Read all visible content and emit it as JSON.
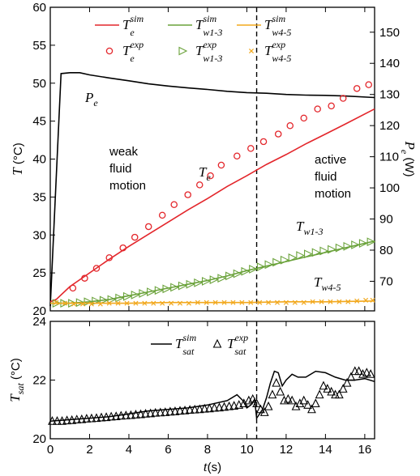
{
  "chart_data": [
    {
      "type": "line",
      "panel": "top",
      "xlim": [
        0,
        16.5
      ],
      "ylim": [
        20,
        60
      ],
      "y2lim": [
        60.5,
        158
      ],
      "xticks": [
        0,
        2,
        4,
        6,
        8,
        10,
        12,
        14,
        16
      ],
      "yticks": [
        20,
        25,
        30,
        35,
        40,
        45,
        50,
        55,
        60
      ],
      "y2ticks": [
        70,
        80,
        90,
        100,
        110,
        120,
        130,
        140,
        150
      ],
      "ylabel": {
        "main": "T",
        "unit": "(°C)"
      },
      "y2label": {
        "main": "P",
        "sub": "e",
        "unit": "(W)"
      },
      "vline_x": 10.5,
      "annotations": {
        "pe_label": {
          "main": "P",
          "sub": "e"
        },
        "te_label": {
          "main": "T",
          "sub": "e"
        },
        "tw13_label": {
          "main": "T",
          "sub": "w1-3"
        },
        "tw45_label": {
          "main": "T",
          "sub": "w4-5"
        },
        "weak_lines": [
          "weak",
          "fluid",
          "motion"
        ],
        "active_lines": [
          "active",
          "fluid",
          "motion"
        ]
      },
      "legend": [
        {
          "main": "T",
          "sub": "e",
          "sup": "sim",
          "kind": "line",
          "color": "#e3262b"
        },
        {
          "main": "T",
          "sub": "w1-3",
          "sup": "sim",
          "kind": "line",
          "color": "#6aa23a"
        },
        {
          "main": "T",
          "sub": "w4-5",
          "sup": "sim",
          "kind": "line",
          "color": "#f2a81d"
        },
        {
          "main": "T",
          "sub": "e",
          "sup": "exp",
          "kind": "circle",
          "color": "#e3262b"
        },
        {
          "main": "T",
          "sub": "w1-3",
          "sup": "exp",
          "kind": "triangle",
          "color": "#6aa23a"
        },
        {
          "main": "T",
          "sub": "w4-5",
          "sup": "exp",
          "kind": "cross",
          "color": "#f2a81d"
        }
      ],
      "series": [
        {
          "key": "Pe",
          "axis": "right",
          "color": "#000000",
          "x": [
            0,
            0.55,
            1.0,
            1.5,
            2.0,
            3.0,
            4.0,
            5.0,
            6.0,
            7.0,
            8.0,
            9.0,
            10.0,
            11.0,
            12.0,
            13.0,
            14.0,
            15.0,
            16.5
          ],
          "values": [
            62,
            136.7,
            137.0,
            137.0,
            136.3,
            135.3,
            134.4,
            133.4,
            132.7,
            132.1,
            131.6,
            131.0,
            130.6,
            130.4,
            130.0,
            129.8,
            129.7,
            129.5,
            129.0
          ]
        },
        {
          "key": "Te_sim",
          "axis": "left",
          "color": "#e3262b",
          "x": [
            0,
            0.3,
            1,
            2,
            3,
            4,
            5,
            6,
            7,
            8,
            9,
            10,
            11,
            12,
            13,
            14,
            15,
            16.5
          ],
          "values": [
            21.2,
            21.5,
            23.2,
            25.0,
            26.8,
            28.5,
            30.1,
            31.7,
            33.3,
            34.8,
            36.4,
            37.8,
            39.3,
            40.6,
            42.0,
            43.3,
            44.6,
            46.6
          ]
        },
        {
          "key": "Te_exp",
          "axis": "left",
          "color": "#e3262b",
          "marker": "circle",
          "x": [
            1.15,
            1.75,
            2.35,
            3.0,
            3.7,
            4.3,
            5.0,
            5.7,
            6.3,
            7.0,
            7.6,
            8.15,
            8.7,
            9.5,
            10.2,
            10.85,
            11.6,
            12.2,
            12.9,
            13.6,
            14.3,
            14.9,
            15.6,
            16.2
          ],
          "values": [
            23.0,
            24.3,
            25.6,
            27.0,
            28.3,
            29.7,
            31.1,
            32.6,
            34.0,
            35.3,
            36.6,
            37.8,
            39.2,
            40.4,
            41.4,
            42.3,
            43.3,
            44.4,
            45.4,
            46.6,
            47.0,
            48.0,
            49.3,
            49.8
          ]
        },
        {
          "key": "Tw13_sim",
          "axis": "left",
          "color": "#6aa23a",
          "x": [
            0,
            1,
            2,
            3,
            4,
            5,
            6,
            7,
            8,
            9,
            10,
            11,
            12,
            13,
            14,
            15,
            16.5
          ],
          "values": [
            21.0,
            21.0,
            21.2,
            21.5,
            22.0,
            22.5,
            23.0,
            23.5,
            24.0,
            24.6,
            25.3,
            25.9,
            26.5,
            27.1,
            27.7,
            28.3,
            29.2
          ]
        },
        {
          "key": "Tw13_exp",
          "axis": "left",
          "color": "#6aa23a",
          "marker": "triangle",
          "x": [
            0.3,
            0.7,
            1.1,
            1.5,
            1.9,
            2.3,
            2.7,
            3.1,
            3.5,
            3.9,
            4.3,
            4.7,
            5.1,
            5.5,
            5.9,
            6.3,
            6.7,
            7.1,
            7.5,
            7.9,
            8.3,
            8.7,
            9.1,
            9.5,
            9.9,
            10.3,
            10.7,
            11.1,
            11.5,
            11.9,
            12.3,
            12.7,
            13.1,
            13.5,
            13.9,
            14.3,
            14.7,
            15.1,
            15.5,
            15.9,
            16.3
          ],
          "values": [
            21.0,
            21.0,
            21.0,
            21.1,
            21.2,
            21.3,
            21.4,
            21.5,
            21.7,
            21.9,
            22.1,
            22.3,
            22.5,
            22.7,
            22.9,
            23.1,
            23.3,
            23.5,
            23.7,
            23.9,
            24.1,
            24.3,
            24.6,
            24.9,
            25.2,
            25.5,
            25.8,
            26.1,
            26.4,
            26.7,
            27.0,
            27.3,
            27.5,
            27.7,
            27.9,
            28.1,
            28.3,
            28.5,
            28.7,
            28.9,
            29.1
          ]
        },
        {
          "key": "Tw45_sim",
          "axis": "left",
          "color": "#f2a81d",
          "x": [
            0,
            2,
            4,
            6,
            8,
            10,
            12,
            14,
            16.5
          ],
          "values": [
            21.0,
            21.0,
            21.0,
            21.1,
            21.1,
            21.1,
            21.2,
            21.2,
            21.3
          ]
        },
        {
          "key": "Tw45_exp",
          "axis": "left",
          "color": "#f2a81d",
          "marker": "cross",
          "x": [
            0.3,
            0.75,
            1.2,
            1.65,
            2.1,
            2.55,
            3.0,
            3.45,
            3.9,
            4.35,
            4.8,
            5.25,
            5.7,
            6.15,
            6.6,
            7.05,
            7.5,
            7.95,
            8.4,
            8.85,
            9.3,
            9.75,
            10.2,
            10.65,
            11.1,
            11.55,
            12.0,
            12.45,
            12.9,
            13.35,
            13.8,
            14.25,
            14.7,
            15.15,
            15.6,
            16.05,
            16.4
          ],
          "values": [
            21.1,
            21.0,
            20.9,
            20.9,
            20.9,
            20.9,
            21.0,
            21.0,
            21.0,
            21.0,
            21.0,
            21.0,
            21.0,
            21.0,
            21.0,
            21.0,
            21.1,
            21.1,
            21.1,
            21.1,
            21.1,
            21.1,
            21.1,
            21.1,
            21.1,
            21.1,
            21.1,
            21.1,
            21.1,
            21.2,
            21.2,
            21.2,
            21.2,
            21.2,
            21.3,
            21.4,
            21.4
          ]
        }
      ]
    },
    {
      "type": "line",
      "panel": "bottom",
      "xlim": [
        0,
        16.5
      ],
      "ylim": [
        20,
        24
      ],
      "xticks": [
        0,
        2,
        4,
        6,
        8,
        10,
        12,
        14,
        16
      ],
      "yticks": [
        20,
        22,
        24
      ],
      "xlabel": {
        "main": "t",
        "unit": "(s)"
      },
      "ylabel": {
        "main": "T",
        "sub": "sat",
        "unit": "(°C)"
      },
      "vline_x": 10.5,
      "legend": [
        {
          "main": "T",
          "sub": "sat",
          "sup": "sim",
          "kind": "line",
          "color": "#000000"
        },
        {
          "main": "T",
          "sub": "sat",
          "sup": "exp",
          "kind": "triangle-up",
          "color": "#000000"
        }
      ],
      "series": [
        {
          "key": "Tsat_sim",
          "color": "#000000",
          "x": [
            0,
            1,
            2,
            3,
            4,
            5,
            6,
            7,
            8,
            9,
            9.5,
            9.8,
            10.0,
            10.2,
            10.4,
            10.5,
            10.6,
            10.8,
            11.0,
            11.2,
            11.4,
            11.6,
            11.8,
            12.0,
            12.3,
            12.6,
            13.0,
            13.5,
            14.0,
            14.5,
            15.0,
            15.5,
            16.0,
            16.5
          ],
          "values": [
            20.6,
            20.65,
            20.7,
            20.75,
            20.85,
            20.95,
            21.0,
            21.05,
            21.15,
            21.3,
            21.5,
            21.3,
            21.05,
            21.15,
            21.35,
            20.7,
            20.8,
            21.0,
            21.4,
            21.9,
            22.3,
            22.25,
            21.8,
            22.0,
            22.2,
            22.1,
            22.1,
            22.3,
            22.25,
            22.1,
            22.0,
            22.0,
            22.05,
            21.95
          ]
        },
        {
          "key": "Tsat_exp",
          "color": "#000000",
          "marker": "triangle",
          "x": [
            0.1,
            0.35,
            0.6,
            0.85,
            1.1,
            1.35,
            1.6,
            1.85,
            2.1,
            2.35,
            2.6,
            2.85,
            3.1,
            3.35,
            3.6,
            3.85,
            4.1,
            4.35,
            4.6,
            4.85,
            5.1,
            5.35,
            5.6,
            5.85,
            6.1,
            6.35,
            6.6,
            6.85,
            7.1,
            7.35,
            7.6,
            7.85,
            8.1,
            8.35,
            8.6,
            8.85,
            9.1,
            9.35,
            9.6,
            9.85,
            10.1,
            10.3,
            10.5,
            10.7,
            10.9,
            11.1,
            11.3,
            11.5,
            11.7,
            11.9,
            12.1,
            12.3,
            12.5,
            12.7,
            12.9,
            13.1,
            13.3,
            13.5,
            13.7,
            13.9,
            14.1,
            14.3,
            14.5,
            14.7,
            14.9,
            15.1,
            15.3,
            15.5,
            15.7,
            15.9,
            16.1,
            16.3
          ],
          "values": [
            20.6,
            20.6,
            20.6,
            20.62,
            20.63,
            20.65,
            20.66,
            20.68,
            20.69,
            20.7,
            20.72,
            20.73,
            20.75,
            20.76,
            20.78,
            20.79,
            20.8,
            20.82,
            20.83,
            20.85,
            20.86,
            20.88,
            20.89,
            20.9,
            20.92,
            20.93,
            20.95,
            20.96,
            20.98,
            20.99,
            21.0,
            21.02,
            21.03,
            21.05,
            21.06,
            21.08,
            21.1,
            21.12,
            21.15,
            21.2,
            21.3,
            21.35,
            21.2,
            21.0,
            20.9,
            21.1,
            21.5,
            21.9,
            21.6,
            21.3,
            21.35,
            21.3,
            21.1,
            21.2,
            21.3,
            21.15,
            21.0,
            21.2,
            21.5,
            21.8,
            21.7,
            21.6,
            21.5,
            21.5,
            21.7,
            21.9,
            22.1,
            22.3,
            22.3,
            22.2,
            22.25,
            22.2
          ]
        }
      ]
    }
  ]
}
